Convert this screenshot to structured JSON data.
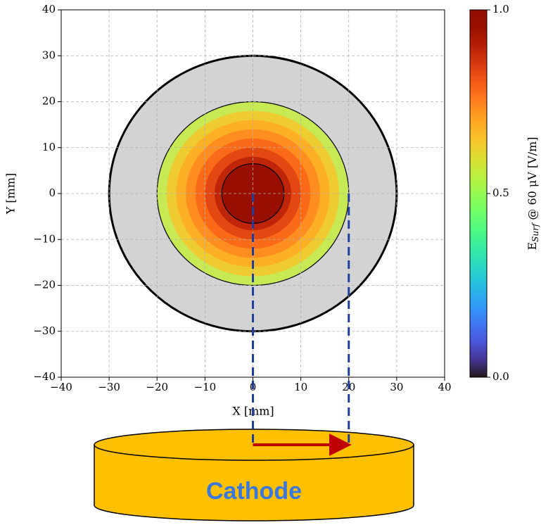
{
  "chart_data": {
    "type": "contour",
    "xlabel": "X [mm]",
    "ylabel": "Y [mm]",
    "xlim": [
      -40,
      40
    ],
    "ylim": [
      -40,
      40
    ],
    "xticks": [
      {
        "value": -40,
        "label": "−40"
      },
      {
        "value": -30,
        "label": "−30"
      },
      {
        "value": -20,
        "label": "−20"
      },
      {
        "value": -10,
        "label": "−10"
      },
      0,
      10,
      20,
      30,
      40
    ],
    "yticks": [
      {
        "value": -40,
        "label": "−40"
      },
      {
        "value": -30,
        "label": "−30"
      },
      {
        "value": -20,
        "label": "−20"
      },
      {
        "value": -10,
        "label": "−10"
      },
      0,
      10,
      20,
      30,
      40
    ],
    "grid": true,
    "outer_radius": 30,
    "outer_color": "#d3d3d3",
    "rings": [
      {
        "radius": 20,
        "value": 0.56
      },
      {
        "radius": 18,
        "value": 0.64
      },
      {
        "radius": 16,
        "value": 0.69
      },
      {
        "radius": 14,
        "value": 0.74
      },
      {
        "radius": 12,
        "value": 0.79
      },
      {
        "radius": 10,
        "value": 0.84
      },
      {
        "radius": 8,
        "value": 0.9
      },
      {
        "radius": 6.5,
        "value": 0.98
      }
    ],
    "contour_radii": [
      30,
      20,
      6.5
    ],
    "colorbar": {
      "label": [
        "E",
        "Surf",
        " @ 60 μV [V/m]"
      ],
      "lim": [
        0,
        1
      ],
      "ticks": [
        {
          "value": 0,
          "label": "0.0"
        },
        {
          "value": 0.5,
          "label": "0.5"
        },
        {
          "value": 1,
          "label": "1.0"
        }
      ]
    },
    "annotation": "Cathode"
  }
}
